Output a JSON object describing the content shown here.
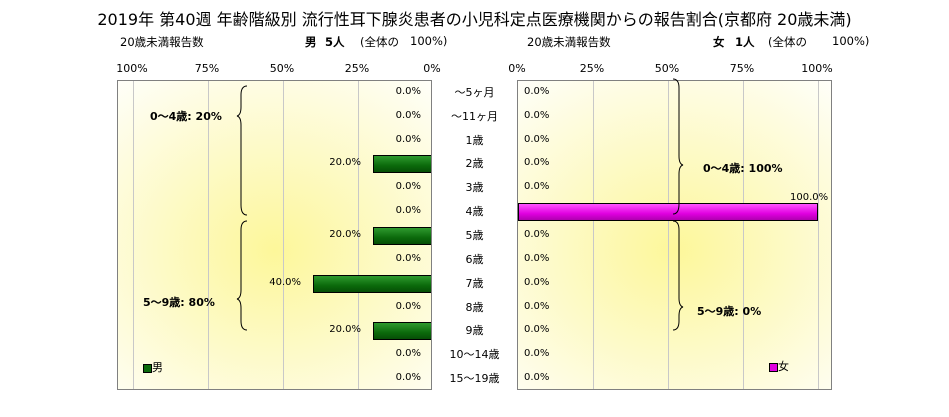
{
  "title": "2019年 第40週 年齢階級別 流行性耳下腺炎患者の小児科定点医療機関からの報告割合(京都府 20歳未満)",
  "left_header": {
    "caption": "20歳未満報告数",
    "sex": "男",
    "count": "5人",
    "note": "(全体の",
    "pct": "100%)"
  },
  "right_header": {
    "caption": "20歳未満報告数",
    "sex": "女",
    "count": "1人",
    "note": "(全体の",
    "pct": "100%)"
  },
  "left_ticks": [
    "100%",
    "75%",
    "50%",
    "25%",
    "0%"
  ],
  "right_ticks": [
    "0%",
    "25%",
    "50%",
    "75%",
    "100%"
  ],
  "left_groups": [
    {
      "label": "0〜4歳: 20%"
    },
    {
      "label": "5〜9歳: 80%"
    }
  ],
  "right_groups": [
    {
      "label": "0〜4歳: 100%"
    },
    {
      "label": "5〜9歳: 0%"
    }
  ],
  "legend": {
    "male": "男",
    "female": "女"
  },
  "colors": {
    "male": "#0b6a0b",
    "female": "#e000e0",
    "background": "#fdf79a"
  },
  "chart_data": {
    "type": "bar",
    "orientation": "horizontal",
    "categories": [
      "〜5ヶ月",
      "〜11ヶ月",
      "1歳",
      "2歳",
      "3歳",
      "4歳",
      "5歳",
      "6歳",
      "7歳",
      "8歳",
      "9歳",
      "10〜14歳",
      "15〜19歳"
    ],
    "series": [
      {
        "name": "男",
        "values": [
          0,
          0,
          0,
          20,
          0,
          0,
          20,
          0,
          40,
          0,
          20,
          0,
          0
        ],
        "labels": [
          "0.0%",
          "0.0%",
          "0.0%",
          "20.0%",
          "0.0%",
          "0.0%",
          "20.0%",
          "0.0%",
          "40.0%",
          "0.0%",
          "20.0%",
          "0.0%",
          "0.0%"
        ]
      },
      {
        "name": "女",
        "values": [
          0,
          0,
          0,
          0,
          0,
          100,
          0,
          0,
          0,
          0,
          0,
          0,
          0
        ],
        "labels": [
          "0.0%",
          "0.0%",
          "0.0%",
          "0.0%",
          "0.0%",
          "100.0%",
          "0.0%",
          "0.0%",
          "0.0%",
          "0.0%",
          "0.0%",
          "0.0%",
          "0.0%"
        ]
      }
    ],
    "xlim": [
      0,
      100
    ],
    "grid": true,
    "legend_position": "bottom"
  }
}
